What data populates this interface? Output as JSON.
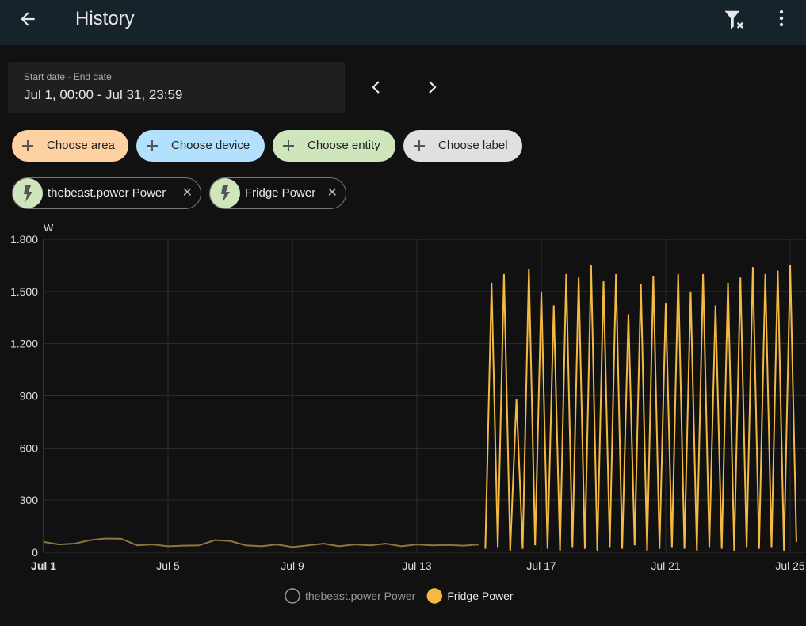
{
  "header": {
    "title": "History"
  },
  "date_picker": {
    "label": "Start date - End date",
    "value": "Jul 1, 00:00 - Jul 31, 23:59"
  },
  "target_chips": [
    "Choose area",
    "Choose device",
    "Choose entity",
    "Choose label"
  ],
  "selected_entities": [
    "thebeast.power Power",
    "Fridge Power"
  ],
  "chart_data": {
    "type": "line",
    "y_unit": "W",
    "ylim": [
      0,
      1800
    ],
    "yticks": [
      0,
      300,
      600,
      900,
      {
        "value": 1200,
        "label": "1.200"
      },
      {
        "value": 1500,
        "label": "1.500"
      },
      {
        "value": 1800,
        "label": "1.800"
      }
    ],
    "xlim": [
      1,
      25.33
    ],
    "xticks": [
      {
        "value": 1,
        "label": "Jul 1"
      },
      {
        "value": 5,
        "label": "Jul 5"
      },
      {
        "value": 9,
        "label": "Jul 9"
      },
      {
        "value": 13,
        "label": "Jul 13"
      },
      {
        "value": 17,
        "label": "Jul 17"
      },
      {
        "value": 21,
        "label": "Jul 21"
      },
      {
        "value": 25,
        "label": "Jul 25"
      }
    ],
    "grid": true,
    "series": [
      {
        "name": "thebeast.power Power",
        "color": "#8f7440",
        "legend_marker": "hollow",
        "x": [
          1,
          1.5,
          2,
          2.5,
          3,
          3.5,
          4,
          4.5,
          5,
          5.5,
          6,
          6.5,
          7,
          7.5,
          8,
          8.5,
          9,
          9.5,
          10,
          10.5,
          11,
          11.5,
          12,
          12.5,
          13,
          13.5,
          14,
          14.5,
          15
        ],
        "values": [
          60,
          45,
          50,
          70,
          80,
          78,
          40,
          45,
          35,
          38,
          40,
          70,
          65,
          40,
          35,
          45,
          30,
          40,
          50,
          35,
          45,
          40,
          50,
          35,
          45,
          40,
          42,
          38,
          45
        ]
      },
      {
        "name": "Fridge Power",
        "color": "#f4b942",
        "legend_marker": "filled",
        "x": [
          15.2,
          15.4,
          15.6,
          15.8,
          16,
          16.2,
          16.4,
          16.6,
          16.8,
          17,
          17.2,
          17.4,
          17.6,
          17.8,
          18,
          18.2,
          18.4,
          18.6,
          18.8,
          19,
          19.2,
          19.4,
          19.6,
          19.8,
          20,
          20.2,
          20.4,
          20.6,
          20.8,
          21,
          21.2,
          21.4,
          21.6,
          21.8,
          22,
          22.2,
          22.4,
          22.6,
          22.8,
          23,
          23.2,
          23.4,
          23.6,
          23.8,
          24,
          24.2,
          24.4,
          24.6,
          24.8,
          25,
          25.2
        ],
        "values": [
          20,
          1550,
          30,
          1600,
          10,
          880,
          20,
          1630,
          40,
          1500,
          20,
          1420,
          10,
          1600,
          30,
          1580,
          20,
          1650,
          10,
          1560,
          30,
          1600,
          20,
          1370,
          40,
          1540,
          10,
          1590,
          20,
          1430,
          30,
          1600,
          20,
          1500,
          10,
          1600,
          30,
          1420,
          20,
          1550,
          10,
          1580,
          30,
          1640,
          20,
          1600,
          30,
          1620,
          10,
          1650,
          60
        ]
      }
    ]
  }
}
